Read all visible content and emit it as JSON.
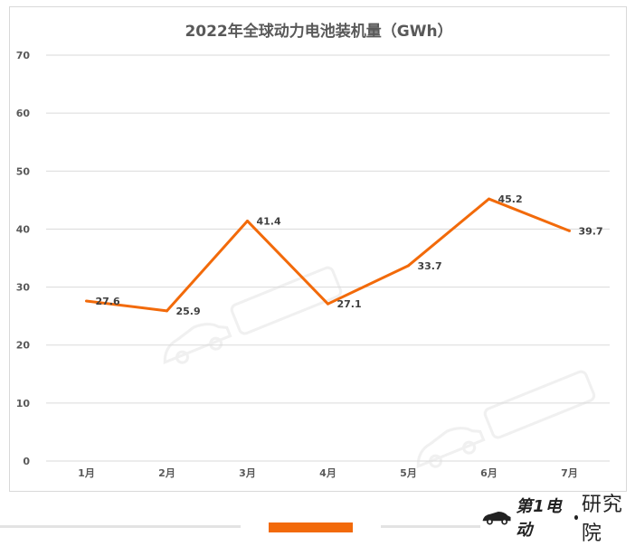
{
  "chart_data": {
    "type": "line",
    "title": "2022年全球动力电池装机量（GWh）",
    "categories": [
      "1月",
      "2月",
      "3月",
      "4月",
      "5月",
      "6月",
      "7月"
    ],
    "series": [
      {
        "values": [
          27.6,
          25.9,
          41.4,
          27.1,
          33.7,
          45.2,
          39.7
        ]
      }
    ],
    "data_labels": [
      "27.6",
      "25.9",
      "41.4",
      "27.1",
      "33.7",
      "45.2",
      "39.7"
    ],
    "ylim": [
      0,
      70
    ],
    "yticks": [
      "0",
      "10",
      "20",
      "30",
      "40",
      "50",
      "60",
      "70"
    ],
    "grid": true,
    "line_color": "#f26a0a"
  },
  "footer": {
    "accent_color": "#f26a0a",
    "logo_icon": "car-logo-icon",
    "logo_text": "第1电动",
    "brand_suffix": "研究院"
  }
}
